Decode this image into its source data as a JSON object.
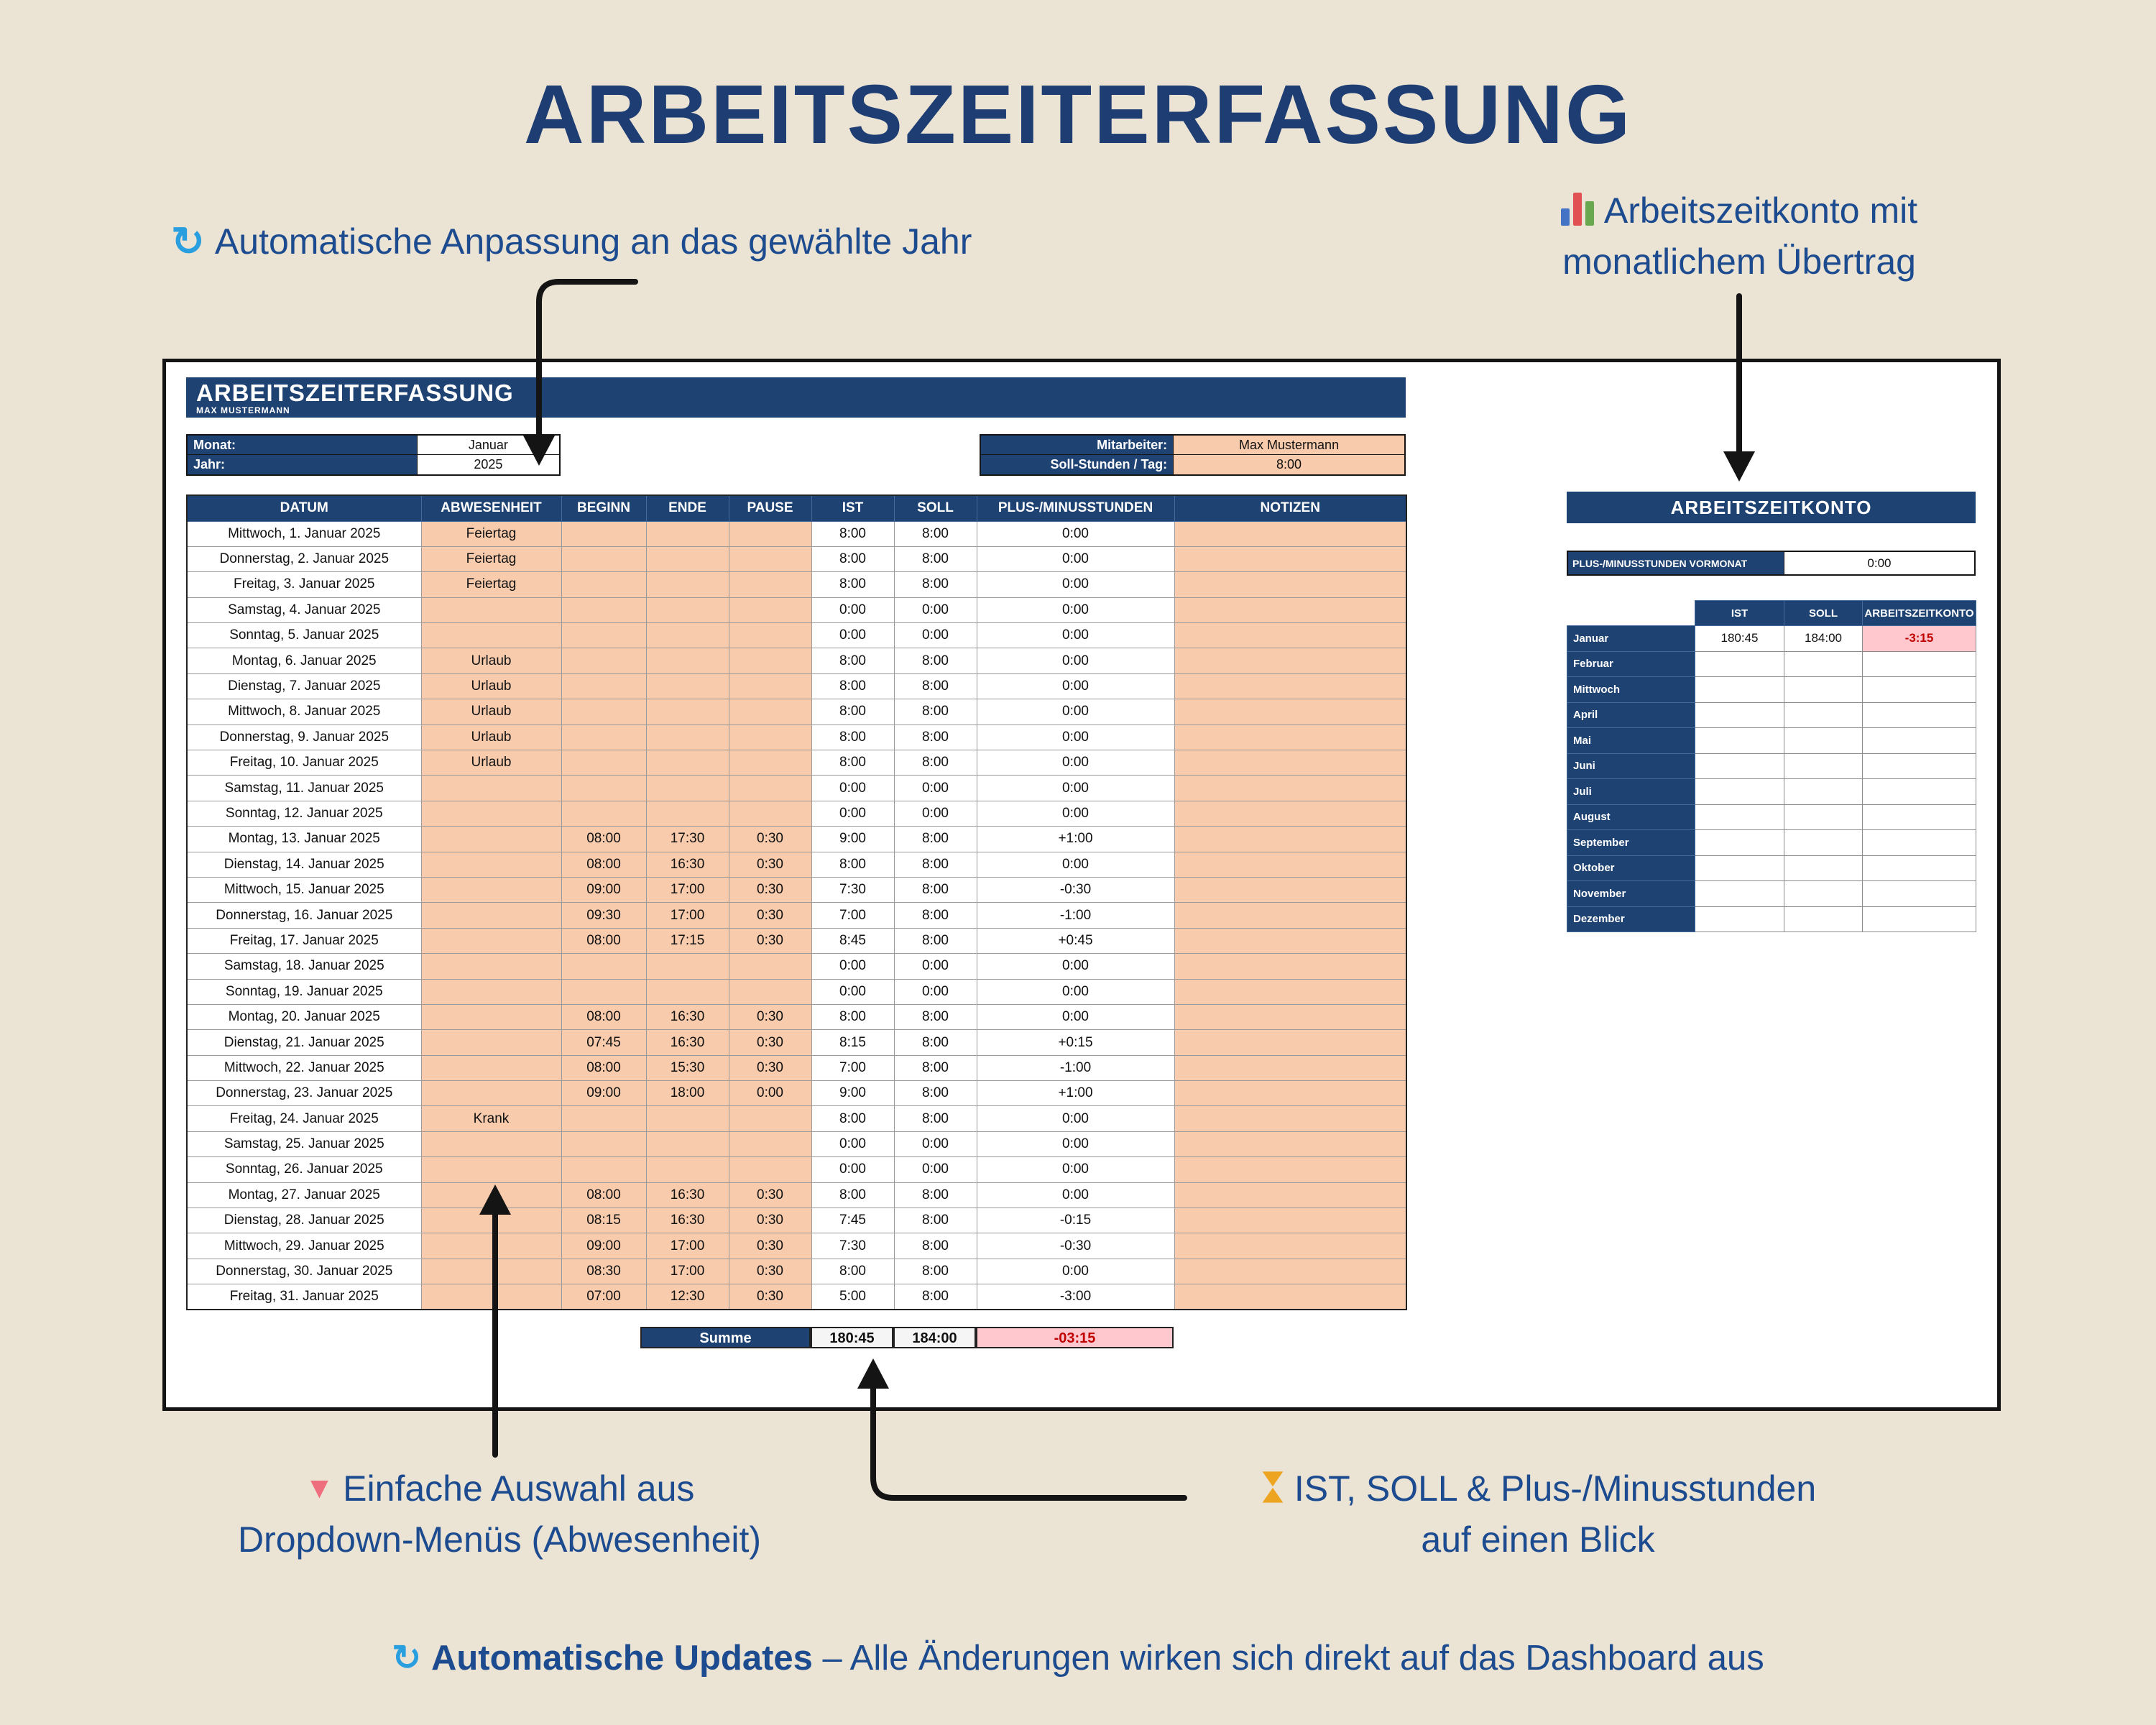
{
  "page": {
    "title": "ARBEITSZEITERFASSUNG",
    "bottom_note_bold": "Automatische Updates",
    "bottom_note_rest": " – Alle Änderungen wirken sich direkt auf das Dashboard aus"
  },
  "annotations": {
    "top_left": "Automatische Anpassung an das gewählte Jahr",
    "top_right_line1": "Arbeitszeitkonto mit",
    "top_right_line2": "monatlichem Übertrag",
    "bottom_left_line1": "Einfache Auswahl aus",
    "bottom_left_line2": "Dropdown-Menüs (Abwesenheit)",
    "bottom_right_line1": "IST, SOLL & Plus-/Minusstunden",
    "bottom_right_line2": "auf einen Blick"
  },
  "sheet": {
    "header_title": "ARBEITSZEITERFASSUNG",
    "header_subtitle": "MAX MUSTERMANN",
    "fields": {
      "monat_label": "Monat:",
      "monat_value": "Januar",
      "jahr_label": "Jahr:",
      "jahr_value": "2025",
      "mitarbeiter_label": "Mitarbeiter:",
      "mitarbeiter_value": "Max Mustermann",
      "soll_label": "Soll-Stunden / Tag:",
      "soll_value": "8:00"
    },
    "table": {
      "columns": [
        "DATUM",
        "ABWESENHEIT",
        "BEGINN",
        "ENDE",
        "PAUSE",
        "IST",
        "SOLL",
        "PLUS-/MINUSSTUNDEN",
        "NOTIZEN"
      ],
      "rows": [
        [
          "Mittwoch, 1. Januar 2025",
          "Feiertag",
          "",
          "",
          "",
          "8:00",
          "8:00",
          "0:00",
          ""
        ],
        [
          "Donnerstag, 2. Januar 2025",
          "Feiertag",
          "",
          "",
          "",
          "8:00",
          "8:00",
          "0:00",
          ""
        ],
        [
          "Freitag, 3. Januar 2025",
          "Feiertag",
          "",
          "",
          "",
          "8:00",
          "8:00",
          "0:00",
          ""
        ],
        [
          "Samstag, 4. Januar 2025",
          "",
          "",
          "",
          "",
          "0:00",
          "0:00",
          "0:00",
          ""
        ],
        [
          "Sonntag, 5. Januar 2025",
          "",
          "",
          "",
          "",
          "0:00",
          "0:00",
          "0:00",
          ""
        ],
        [
          "Montag, 6. Januar 2025",
          "Urlaub",
          "",
          "",
          "",
          "8:00",
          "8:00",
          "0:00",
          ""
        ],
        [
          "Dienstag, 7. Januar 2025",
          "Urlaub",
          "",
          "",
          "",
          "8:00",
          "8:00",
          "0:00",
          ""
        ],
        [
          "Mittwoch, 8. Januar 2025",
          "Urlaub",
          "",
          "",
          "",
          "8:00",
          "8:00",
          "0:00",
          ""
        ],
        [
          "Donnerstag, 9. Januar 2025",
          "Urlaub",
          "",
          "",
          "",
          "8:00",
          "8:00",
          "0:00",
          ""
        ],
        [
          "Freitag, 10. Januar 2025",
          "Urlaub",
          "",
          "",
          "",
          "8:00",
          "8:00",
          "0:00",
          ""
        ],
        [
          "Samstag, 11. Januar 2025",
          "",
          "",
          "",
          "",
          "0:00",
          "0:00",
          "0:00",
          ""
        ],
        [
          "Sonntag, 12. Januar 2025",
          "",
          "",
          "",
          "",
          "0:00",
          "0:00",
          "0:00",
          ""
        ],
        [
          "Montag, 13. Januar 2025",
          "",
          "08:00",
          "17:30",
          "0:30",
          "9:00",
          "8:00",
          "+1:00",
          ""
        ],
        [
          "Dienstag, 14. Januar 2025",
          "",
          "08:00",
          "16:30",
          "0:30",
          "8:00",
          "8:00",
          "0:00",
          ""
        ],
        [
          "Mittwoch, 15. Januar 2025",
          "",
          "09:00",
          "17:00",
          "0:30",
          "7:30",
          "8:00",
          "-0:30",
          ""
        ],
        [
          "Donnerstag, 16. Januar 2025",
          "",
          "09:30",
          "17:00",
          "0:30",
          "7:00",
          "8:00",
          "-1:00",
          ""
        ],
        [
          "Freitag, 17. Januar 2025",
          "",
          "08:00",
          "17:15",
          "0:30",
          "8:45",
          "8:00",
          "+0:45",
          ""
        ],
        [
          "Samstag, 18. Januar 2025",
          "",
          "",
          "",
          "",
          "0:00",
          "0:00",
          "0:00",
          ""
        ],
        [
          "Sonntag, 19. Januar 2025",
          "",
          "",
          "",
          "",
          "0:00",
          "0:00",
          "0:00",
          ""
        ],
        [
          "Montag, 20. Januar 2025",
          "",
          "08:00",
          "16:30",
          "0:30",
          "8:00",
          "8:00",
          "0:00",
          ""
        ],
        [
          "Dienstag, 21. Januar 2025",
          "",
          "07:45",
          "16:30",
          "0:30",
          "8:15",
          "8:00",
          "+0:15",
          ""
        ],
        [
          "Mittwoch, 22. Januar 2025",
          "",
          "08:00",
          "15:30",
          "0:30",
          "7:00",
          "8:00",
          "-1:00",
          ""
        ],
        [
          "Donnerstag, 23. Januar 2025",
          "",
          "09:00",
          "18:00",
          "0:00",
          "9:00",
          "8:00",
          "+1:00",
          ""
        ],
        [
          "Freitag, 24. Januar 2025",
          "Krank",
          "",
          "",
          "",
          "8:00",
          "8:00",
          "0:00",
          ""
        ],
        [
          "Samstag, 25. Januar 2025",
          "",
          "",
          "",
          "",
          "0:00",
          "0:00",
          "0:00",
          ""
        ],
        [
          "Sonntag, 26. Januar 2025",
          "",
          "",
          "",
          "",
          "0:00",
          "0:00",
          "0:00",
          ""
        ],
        [
          "Montag, 27. Januar 2025",
          "",
          "08:00",
          "16:30",
          "0:30",
          "8:00",
          "8:00",
          "0:00",
          ""
        ],
        [
          "Dienstag, 28. Januar 2025",
          "",
          "08:15",
          "16:30",
          "0:30",
          "7:45",
          "8:00",
          "-0:15",
          ""
        ],
        [
          "Mittwoch, 29. Januar 2025",
          "",
          "09:00",
          "17:00",
          "0:30",
          "7:30",
          "8:00",
          "-0:30",
          ""
        ],
        [
          "Donnerstag, 30. Januar 2025",
          "",
          "08:30",
          "17:00",
          "0:30",
          "8:00",
          "8:00",
          "0:00",
          ""
        ],
        [
          "Freitag, 31. Januar 2025",
          "",
          "07:00",
          "12:30",
          "0:30",
          "5:00",
          "8:00",
          "-3:00",
          ""
        ]
      ],
      "summe_label": "Summe",
      "summe_ist": "180:45",
      "summe_soll": "184:00",
      "summe_diff": "-03:15"
    }
  },
  "konto": {
    "title": "ARBEITSZEITKONTO",
    "vormonat_label": "PLUS-/MINUSSTUNDEN VORMONAT",
    "vormonat_value": "0:00",
    "columns": [
      "IST",
      "SOLL",
      "ARBEITSZEITKONTO"
    ],
    "months": [
      {
        "name": "Januar",
        "ist": "180:45",
        "soll": "184:00",
        "konto": "-3:15"
      },
      {
        "name": "Februar",
        "ist": "",
        "soll": "",
        "konto": ""
      },
      {
        "name": "Mittwoch",
        "ist": "",
        "soll": "",
        "konto": ""
      },
      {
        "name": "April",
        "ist": "",
        "soll": "",
        "konto": ""
      },
      {
        "name": "Mai",
        "ist": "",
        "soll": "",
        "konto": ""
      },
      {
        "name": "Juni",
        "ist": "",
        "soll": "",
        "konto": ""
      },
      {
        "name": "Juli",
        "ist": "",
        "soll": "",
        "konto": ""
      },
      {
        "name": "August",
        "ist": "",
        "soll": "",
        "konto": ""
      },
      {
        "name": "September",
        "ist": "",
        "soll": "",
        "konto": ""
      },
      {
        "name": "Oktober",
        "ist": "",
        "soll": "",
        "konto": ""
      },
      {
        "name": "November",
        "ist": "",
        "soll": "",
        "konto": ""
      },
      {
        "name": "Dezember",
        "ist": "",
        "soll": "",
        "konto": ""
      }
    ]
  },
  "colors": {
    "background": "#ebe3d3",
    "navy": "#1e4272",
    "title_blue": "#1e3d73",
    "annotation_blue": "#1d4b8f",
    "input_orange": "#f8cbad",
    "negative_pink": "#ffc7ce",
    "negative_red": "#c00000",
    "refresh_icon_blue": "#2a9fe0"
  }
}
